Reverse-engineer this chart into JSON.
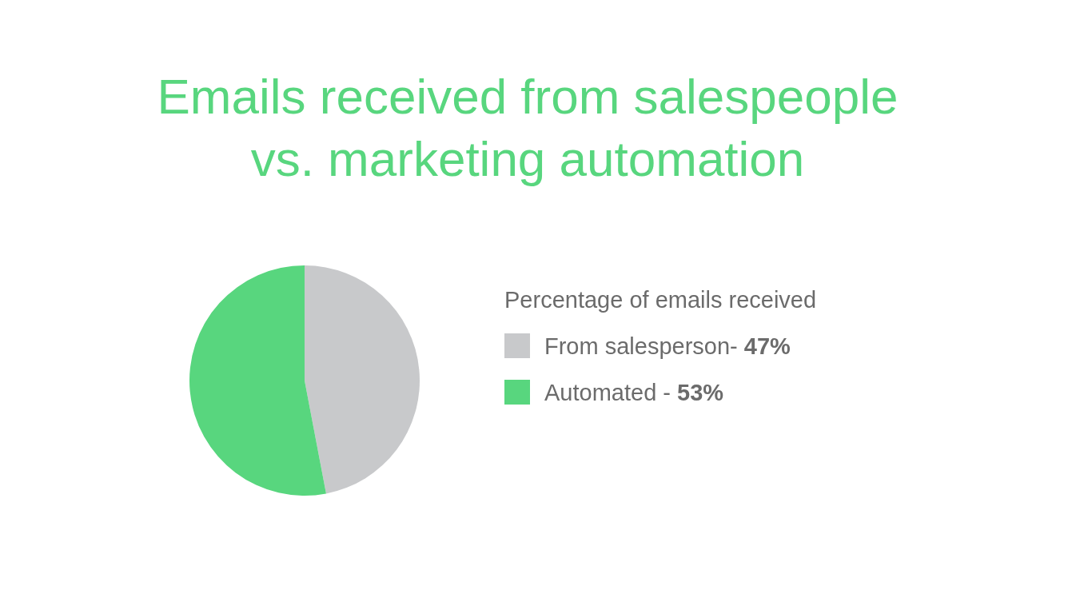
{
  "chart_data": {
    "type": "pie",
    "title": "Emails received from salespeople vs. marketing automation",
    "legend_title": "Percentage of emails received",
    "categories": [
      "From salesperson-",
      "Automated -"
    ],
    "values": [
      47,
      53
    ],
    "value_labels": [
      "47%",
      "53%"
    ],
    "colors": [
      "#c8c9cb",
      "#58d67e"
    ],
    "legend": "right"
  }
}
